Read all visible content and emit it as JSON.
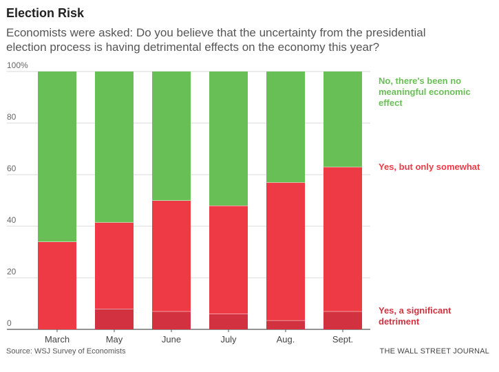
{
  "header": {
    "title": "Election Risk",
    "subtitle": "Economists were asked: Do you believe that the uncertainty from the presidential election process is having detrimental effects on the economy this year?"
  },
  "footer": {
    "source": "Source: WSJ Survey of Economists",
    "brand": "THE WALL STREET JOURNAL"
  },
  "colors": {
    "significant": "#d2323f",
    "somewhat": "#ee3a45",
    "no_effect": "#68bf55",
    "grid": "#cccccc",
    "axis": "#555555"
  },
  "chart_data": {
    "type": "bar",
    "stacked": true,
    "categories": [
      "March",
      "May",
      "June",
      "July",
      "Aug.",
      "Sept."
    ],
    "series": [
      {
        "name": "Yes, a significant detriment",
        "values": [
          0,
          8,
          7,
          6,
          3.5,
          7
        ]
      },
      {
        "name": "Yes, but only somewhat",
        "values": [
          34,
          33.5,
          43,
          42,
          53.5,
          56
        ]
      },
      {
        "name": "No, there's been no meaningful economic effect",
        "values": [
          66,
          58.5,
          50,
          52,
          43,
          37
        ]
      }
    ],
    "ylim": [
      0,
      100
    ],
    "yticks": [
      0,
      20,
      40,
      60,
      80,
      100
    ],
    "ytick_labels": [
      "0",
      "20",
      "40",
      "60",
      "80",
      "100%"
    ],
    "grid": true,
    "legend_placement": "right, inline with segments"
  }
}
